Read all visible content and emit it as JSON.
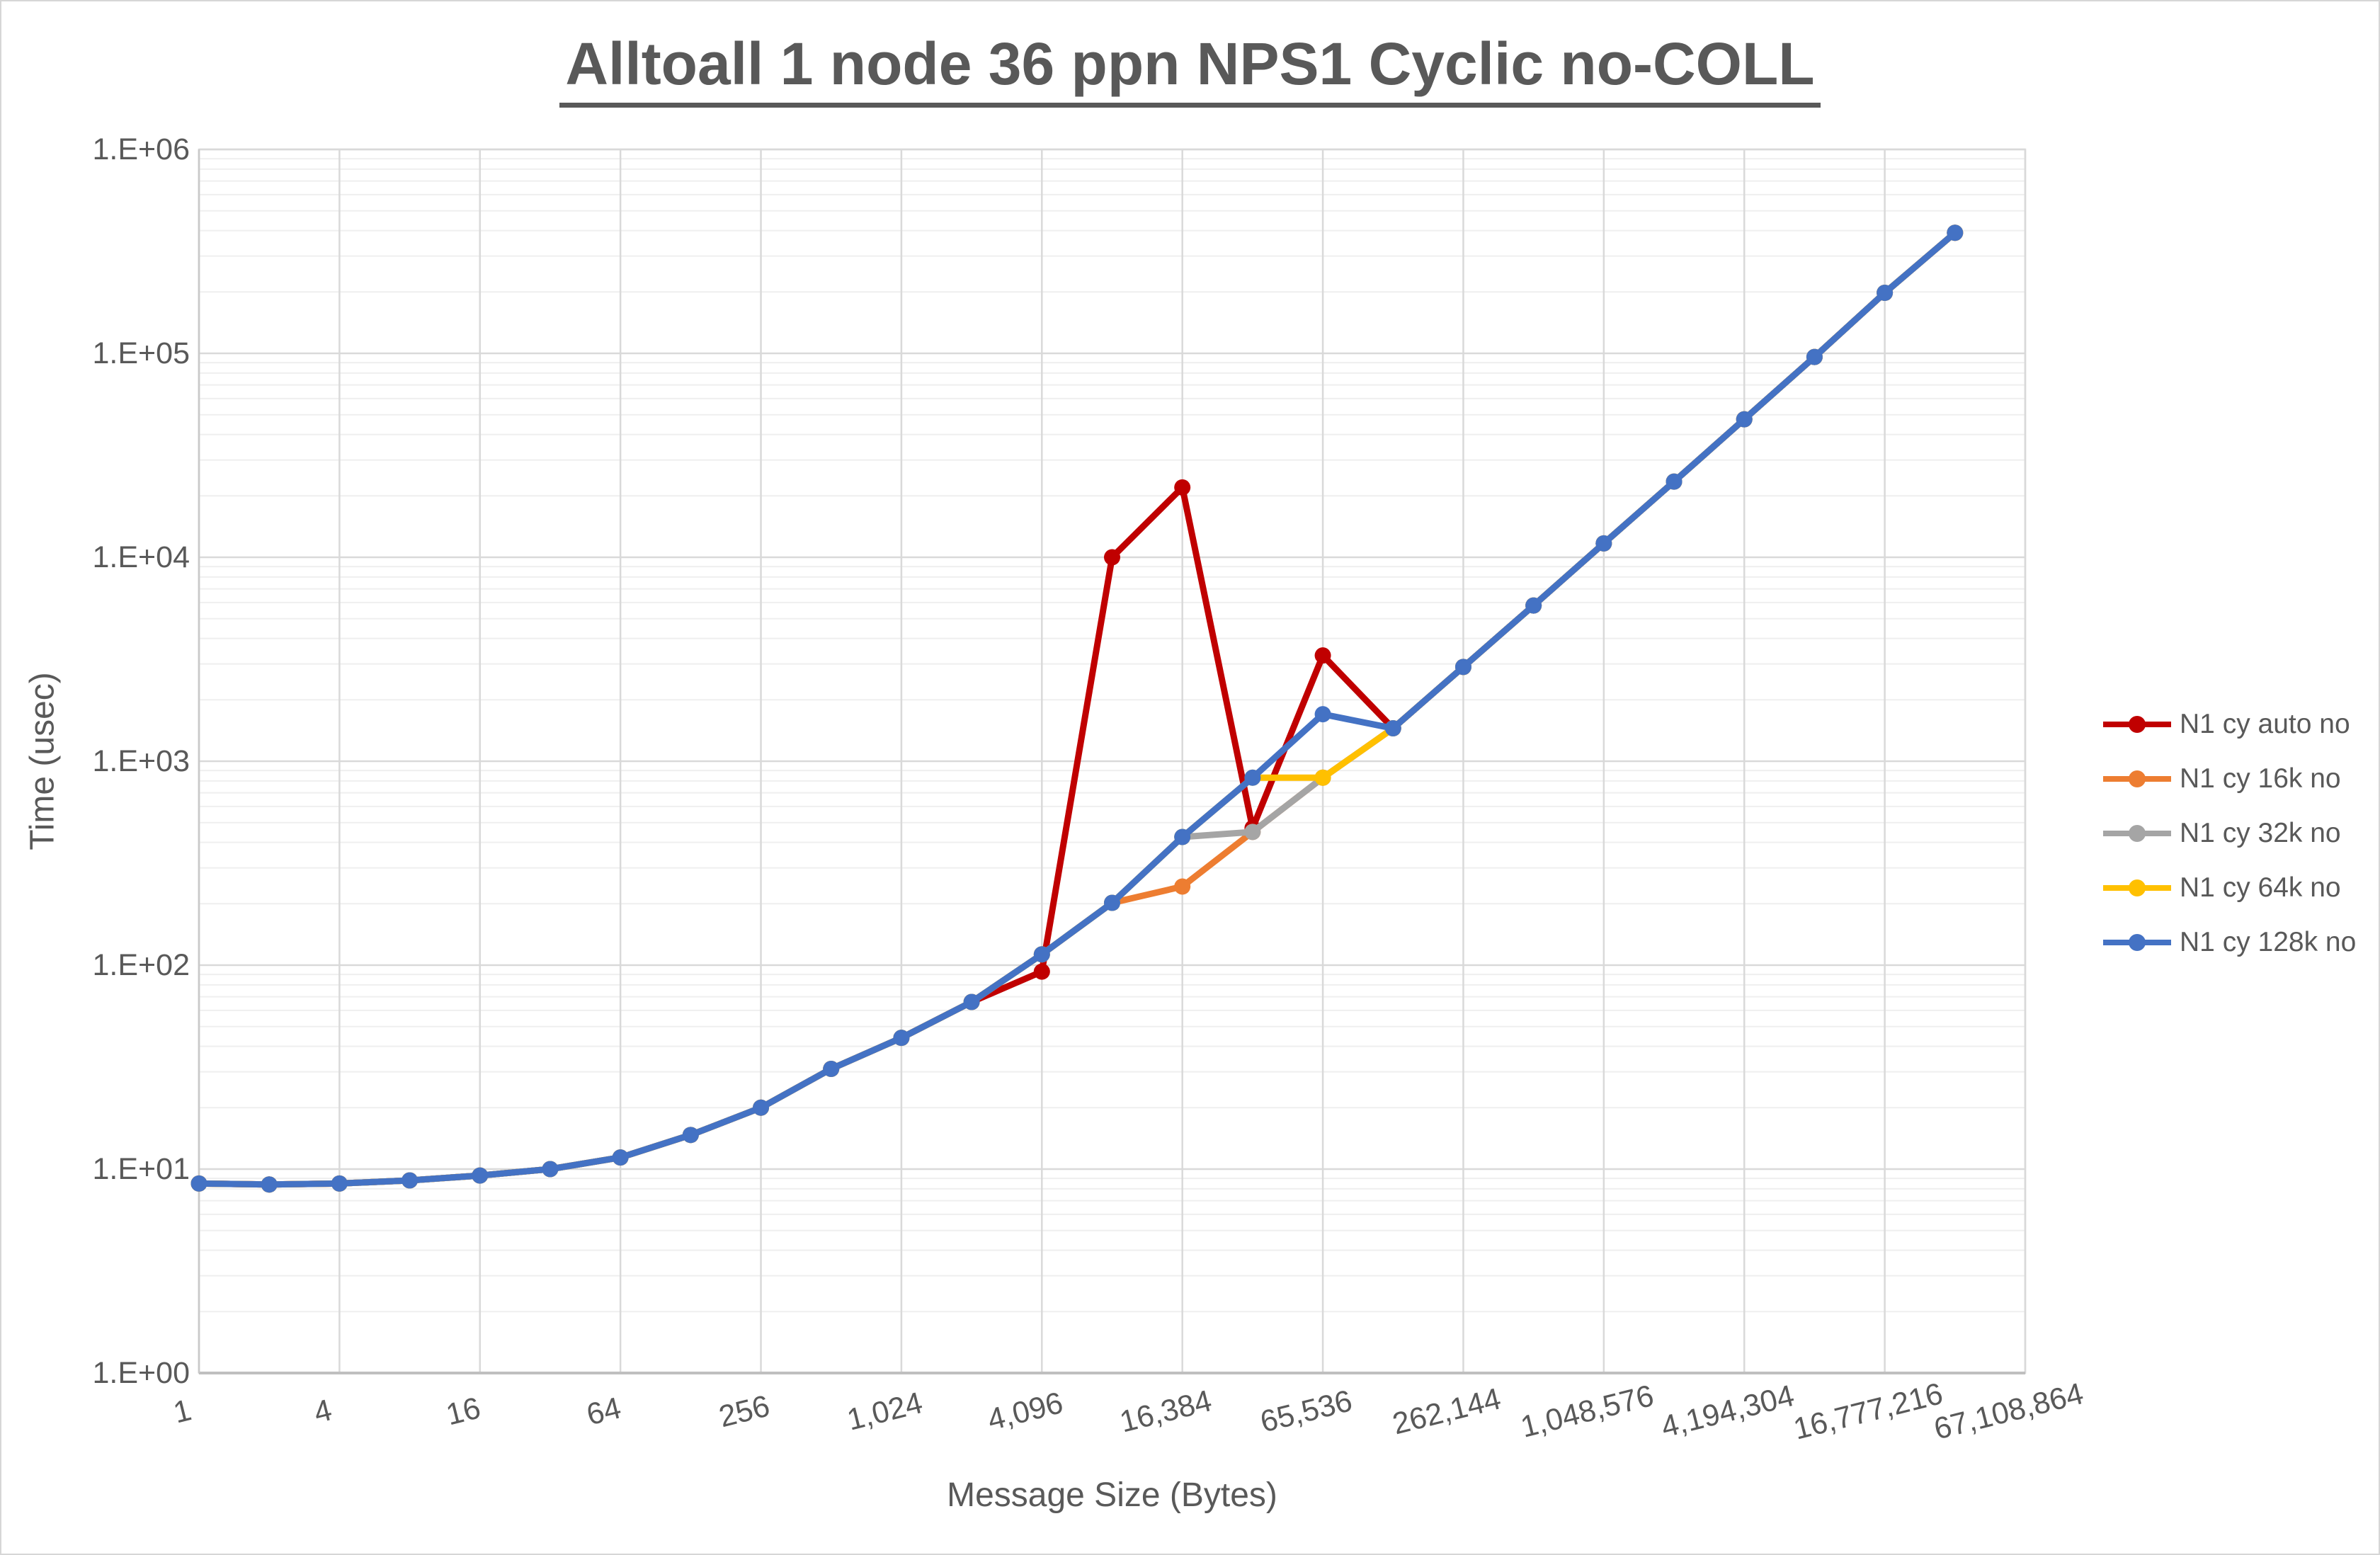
{
  "title": "Alltoall 1 node 36 ppn NPS1 Cyclic no-COLL",
  "x_axis": {
    "title": "Message Size (Bytes)",
    "tick_labels": [
      "1",
      "4",
      "16",
      "64",
      "256",
      "1,024",
      "4,096",
      "16,384",
      "65,536",
      "262,144",
      "1,048,576",
      "4,194,304",
      "16,777,216",
      "67,108,864"
    ]
  },
  "y_axis": {
    "title": "Time (usec)",
    "tick_labels": [
      "1.E+00",
      "1.E+01",
      "1.E+02",
      "1.E+03",
      "1.E+04",
      "1.E+05",
      "1.E+06"
    ],
    "min_exp": 0,
    "max_exp": 6
  },
  "colors": {
    "title_text": "#595959",
    "axis_text": "#595959",
    "major_grid": "#d9d9d9",
    "minor_grid": "#efefef",
    "axis_line": "#bfbfbf"
  },
  "chart_data": {
    "type": "line",
    "x_scale": "log2_category",
    "y_scale": "log10",
    "ylim": [
      1,
      1000000
    ],
    "grid": {
      "major": true,
      "minor_log_horizontal": true,
      "vertical_every_other_category": true
    },
    "legend_position": "right",
    "categories": [
      1,
      2,
      4,
      8,
      16,
      32,
      64,
      128,
      256,
      512,
      1024,
      2048,
      4096,
      8192,
      16384,
      32768,
      65536,
      131072,
      262144,
      524288,
      1048576,
      2097152,
      4194304,
      8388608,
      16777216,
      33554432
    ],
    "series": [
      {
        "name": "N1 cy auto no",
        "color": "#C00000",
        "values": [
          8.5,
          8.4,
          8.5,
          8.8,
          9.3,
          10,
          11.4,
          14.7,
          20,
          31,
          44,
          66,
          93,
          10000,
          22000,
          470,
          3300,
          1450,
          2900,
          5800,
          11700,
          23500,
          47500,
          96000,
          198000,
          390000
        ]
      },
      {
        "name": "N1 cy 16k no",
        "color": "#ED7D31",
        "values": [
          8.5,
          8.4,
          8.5,
          8.8,
          9.3,
          10,
          11.4,
          14.7,
          20,
          31,
          44,
          66,
          113,
          202,
          243,
          450,
          830,
          1450,
          2900,
          5800,
          11700,
          23500,
          47500,
          96000,
          198000,
          390000
        ]
      },
      {
        "name": "N1 cy 32k no",
        "color": "#A5A5A5",
        "values": [
          8.5,
          8.4,
          8.5,
          8.8,
          9.3,
          10,
          11.4,
          14.7,
          20,
          31,
          44,
          66,
          113,
          202,
          425,
          450,
          830,
          1450,
          2900,
          5800,
          11700,
          23500,
          47500,
          96000,
          198000,
          390000
        ]
      },
      {
        "name": "N1 cy 64k no",
        "color": "#FFC000",
        "values": [
          8.5,
          8.4,
          8.5,
          8.8,
          9.3,
          10,
          11.4,
          14.7,
          20,
          31,
          44,
          66,
          113,
          202,
          425,
          830,
          830,
          1450,
          2900,
          5800,
          11700,
          23500,
          47500,
          96000,
          198000,
          390000
        ]
      },
      {
        "name": "N1 cy 128k no",
        "color": "#4472C4",
        "values": [
          8.5,
          8.4,
          8.5,
          8.8,
          9.3,
          10,
          11.4,
          14.7,
          20,
          31,
          44,
          66,
          113,
          202,
          425,
          830,
          1700,
          1450,
          2900,
          5800,
          11700,
          23500,
          47500,
          96000,
          198000,
          390000
        ]
      }
    ]
  }
}
